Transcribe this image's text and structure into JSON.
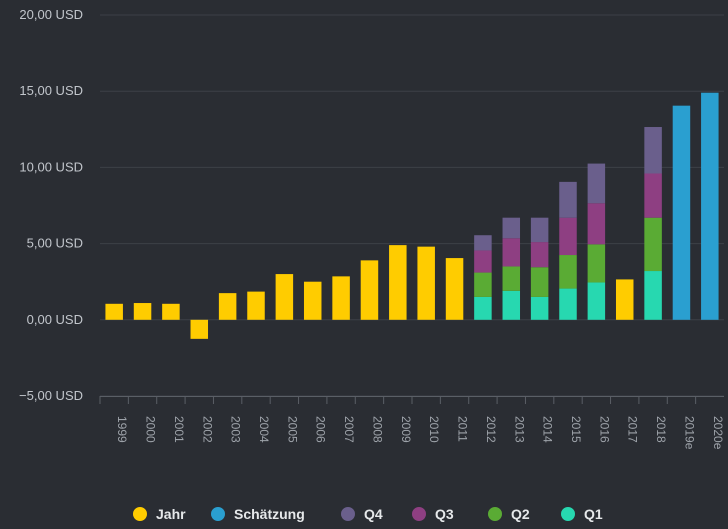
{
  "chart_data": {
    "type": "bar",
    "stacked": true,
    "categories": [
      "1999",
      "2000",
      "2001",
      "2002",
      "2003",
      "2004",
      "2005",
      "2006",
      "2007",
      "2008",
      "2009",
      "2010",
      "2011",
      "2012",
      "2013",
      "2014",
      "2015",
      "2016",
      "2017",
      "2018",
      "2019e",
      "2020e"
    ],
    "ylim": [
      -5,
      20
    ],
    "yticks": [
      20,
      15,
      10,
      5,
      0,
      -5
    ],
    "ytick_labels": [
      "20,00 USD",
      "15,00 USD",
      "10,00 USD",
      "5,00 USD",
      "0,00 USD",
      "−5,00 USD"
    ],
    "grid": true,
    "legend_position": "bottom",
    "series": [
      {
        "name": "Jahr",
        "color": "#ffcc00",
        "values": [
          1.05,
          1.1,
          1.05,
          -1.25,
          1.75,
          1.85,
          3.0,
          2.5,
          2.85,
          3.9,
          4.9,
          4.8,
          4.05,
          null,
          null,
          null,
          null,
          null,
          2.65,
          null,
          null,
          null
        ]
      },
      {
        "name": "Schätzung",
        "color": "#2a9fd0",
        "values": [
          null,
          null,
          null,
          null,
          null,
          null,
          null,
          null,
          null,
          null,
          null,
          null,
          null,
          null,
          null,
          null,
          null,
          null,
          null,
          null,
          14.05,
          14.9
        ]
      },
      {
        "name": "Q4",
        "color": "#6a5f8c",
        "values": [
          null,
          null,
          null,
          null,
          null,
          null,
          null,
          null,
          null,
          null,
          null,
          null,
          null,
          1.0,
          1.35,
          1.6,
          2.35,
          2.6,
          null,
          3.05,
          null,
          null
        ]
      },
      {
        "name": "Q3",
        "color": "#8e3f82",
        "values": [
          null,
          null,
          null,
          null,
          null,
          null,
          null,
          null,
          null,
          null,
          null,
          null,
          null,
          1.45,
          1.85,
          1.65,
          2.45,
          2.7,
          null,
          2.9,
          null,
          null
        ]
      },
      {
        "name": "Q2",
        "color": "#5aab34",
        "values": [
          null,
          null,
          null,
          null,
          null,
          null,
          null,
          null,
          null,
          null,
          null,
          null,
          null,
          1.6,
          1.6,
          1.95,
          2.2,
          2.5,
          null,
          3.5,
          null,
          null
        ]
      },
      {
        "name": "Q1",
        "color": "#27d8b0",
        "values": [
          null,
          null,
          null,
          null,
          null,
          null,
          null,
          null,
          null,
          null,
          null,
          null,
          null,
          1.5,
          1.9,
          1.5,
          2.05,
          2.45,
          null,
          3.2,
          null,
          null
        ]
      }
    ],
    "legend": [
      {
        "label": "Jahr",
        "color": "#ffcc00"
      },
      {
        "label": "Schätzung",
        "color": "#2a9fd0"
      },
      {
        "label": "Q4",
        "color": "#6a5f8c"
      },
      {
        "label": "Q3",
        "color": "#8e3f82"
      },
      {
        "label": "Q2",
        "color": "#5aab34"
      },
      {
        "label": "Q1",
        "color": "#27d8b0"
      }
    ]
  }
}
